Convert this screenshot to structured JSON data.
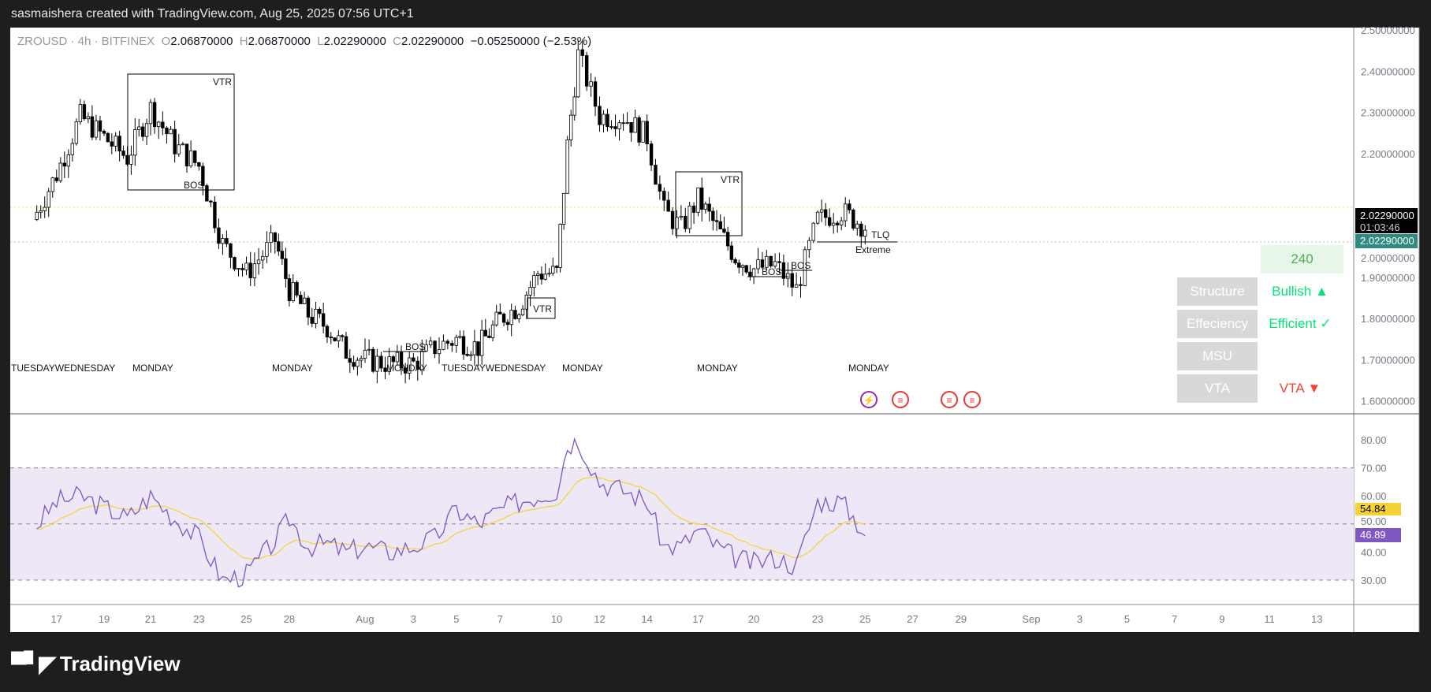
{
  "header": {
    "credit": "sasmaishera created with TradingView.com, Aug 25, 2025 07:56 UTC+1"
  },
  "legend": {
    "symbol": "ZROUSD · 4h · BITFINEX",
    "o_label": "O",
    "open": "2.06870000",
    "h_label": "H",
    "high": "2.06870000",
    "l_label": "L",
    "low": "2.02290000",
    "c_label": "C",
    "close": "2.02290000",
    "change": "−0.05250000 (−2.53%)"
  },
  "price_axis": {
    "ticks": [
      "2.50000000",
      "2.40000000",
      "2.30000000",
      "2.20000000",
      "2.00000000",
      "1.90000000",
      "1.80000000",
      "1.70000000",
      "1.60000000"
    ],
    "last_price": "2.02290000",
    "countdown": "01:03:46",
    "current_label": "2.02290000"
  },
  "rsi_axis": {
    "ticks": [
      "80.00",
      "70.00",
      "60.00",
      "50.00",
      "40.00",
      "30.00"
    ],
    "ma_value": "54.84",
    "rsi_value": "46.89",
    "ma_color": "#f7d234",
    "rsi_color": "#7e57c2"
  },
  "time_axis": {
    "ticks": [
      "17",
      "19",
      "21",
      "23",
      "25",
      "28",
      "Aug",
      "3",
      "5",
      "7",
      "10",
      "12",
      "14",
      "17",
      "20",
      "23",
      "25",
      "27",
      "29",
      "Sep",
      "3",
      "5",
      "7",
      "9",
      "11",
      "13"
    ]
  },
  "annotations": {
    "vtr": "VTR",
    "bos": "BOS",
    "tlq": "TLQ",
    "extreme": "Extreme",
    "monday": "MONDAY",
    "day_overlap": "TUESDAYWEDNESDAY"
  },
  "table": {
    "timeframe": "240",
    "rows": [
      {
        "label": "Structure",
        "value": "Bullish ▲",
        "color": "#00e676"
      },
      {
        "label": "Effeciency",
        "value": "Efficient ✓",
        "color": "#00e676"
      },
      {
        "label": "MSU",
        "value": "",
        "color": "#00e676"
      },
      {
        "label": "VTA",
        "value": "VTA ▼",
        "color": "#f44336"
      }
    ]
  },
  "icons": [
    "lightning-icon",
    "us-flag-icon",
    "us-flag-icon",
    "us-flag-icon"
  ],
  "footer": {
    "brand": "TradingView"
  },
  "chart_data": [
    {
      "type": "candlestick",
      "title": "ZROUSD · 4h · BITFINEX",
      "ylim": [
        1.6,
        2.55
      ],
      "x": [
        "2025-07-16",
        "2025-07-17",
        "2025-07-18",
        "2025-07-19",
        "2025-07-20",
        "2025-07-21",
        "2025-07-22",
        "2025-07-23",
        "2025-07-24",
        "2025-07-25",
        "2025-07-27",
        "2025-07-28",
        "2025-07-29",
        "2025-07-30",
        "2025-07-31",
        "2025-08-01",
        "2025-08-02",
        "2025-08-03",
        "2025-08-04",
        "2025-08-05",
        "2025-08-06",
        "2025-08-07",
        "2025-08-08",
        "2025-08-09",
        "2025-08-10",
        "2025-08-10T12",
        "2025-08-11",
        "2025-08-12",
        "2025-08-13",
        "2025-08-14",
        "2025-08-15",
        "2025-08-16",
        "2025-08-17",
        "2025-08-18",
        "2025-08-19",
        "2025-08-20",
        "2025-08-21",
        "2025-08-22",
        "2025-08-23",
        "2025-08-24",
        "2025-08-25"
      ],
      "close": [
        2.04,
        2.15,
        2.29,
        2.24,
        2.19,
        2.31,
        2.22,
        2.17,
        1.98,
        1.91,
        1.99,
        1.87,
        1.81,
        1.78,
        1.72,
        1.7,
        1.69,
        1.69,
        1.73,
        1.75,
        1.73,
        1.8,
        1.83,
        1.91,
        1.91,
        2.22,
        2.44,
        2.29,
        2.29,
        2.24,
        2.06,
        2.02,
        2.09,
        2.02,
        1.95,
        1.92,
        1.93,
        1.87,
        2.04,
        2.06,
        2.0229
      ]
    },
    {
      "type": "line",
      "title": "RSI",
      "ylim": [
        20,
        85
      ],
      "bands": [
        30,
        50,
        70
      ],
      "series": [
        {
          "values": [
            48,
            58,
            60,
            56,
            52,
            60,
            52,
            45,
            30,
            32,
            44,
            52,
            42,
            43,
            40,
            42,
            40,
            42,
            45,
            55,
            50,
            55,
            58,
            60,
            62,
            78,
            80,
            65,
            62,
            58,
            42,
            42,
            48,
            42,
            38,
            36,
            38,
            35,
            58,
            58,
            46.89
          ]
        }
      ]
    }
  ]
}
